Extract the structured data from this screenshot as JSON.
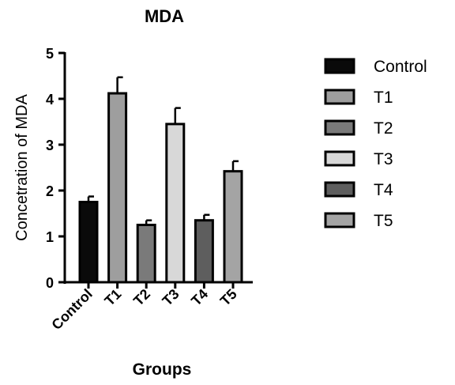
{
  "chart_data": {
    "type": "bar",
    "title": "MDA",
    "xlabel": "Groups",
    "ylabel": "Concetration of MDA",
    "categories": [
      "Control",
      "T1",
      "T2",
      "T3",
      "T4",
      "T5"
    ],
    "values": [
      1.75,
      4.12,
      1.25,
      3.45,
      1.35,
      2.42
    ],
    "errors": [
      0.12,
      0.35,
      0.1,
      0.35,
      0.12,
      0.22
    ],
    "ylim": [
      0,
      5
    ],
    "yticks": [
      0,
      1,
      2,
      3,
      4,
      5
    ],
    "grid": false,
    "legend": {
      "placement": "right",
      "entries": [
        "Control",
        "T1",
        "T2",
        "T3",
        "T4",
        "T5"
      ]
    },
    "colors": [
      "#0a0a0a",
      "#9e9e9e",
      "#7a7a7a",
      "#d8d8d8",
      "#5e5e5e",
      "#a4a4a4"
    ]
  }
}
